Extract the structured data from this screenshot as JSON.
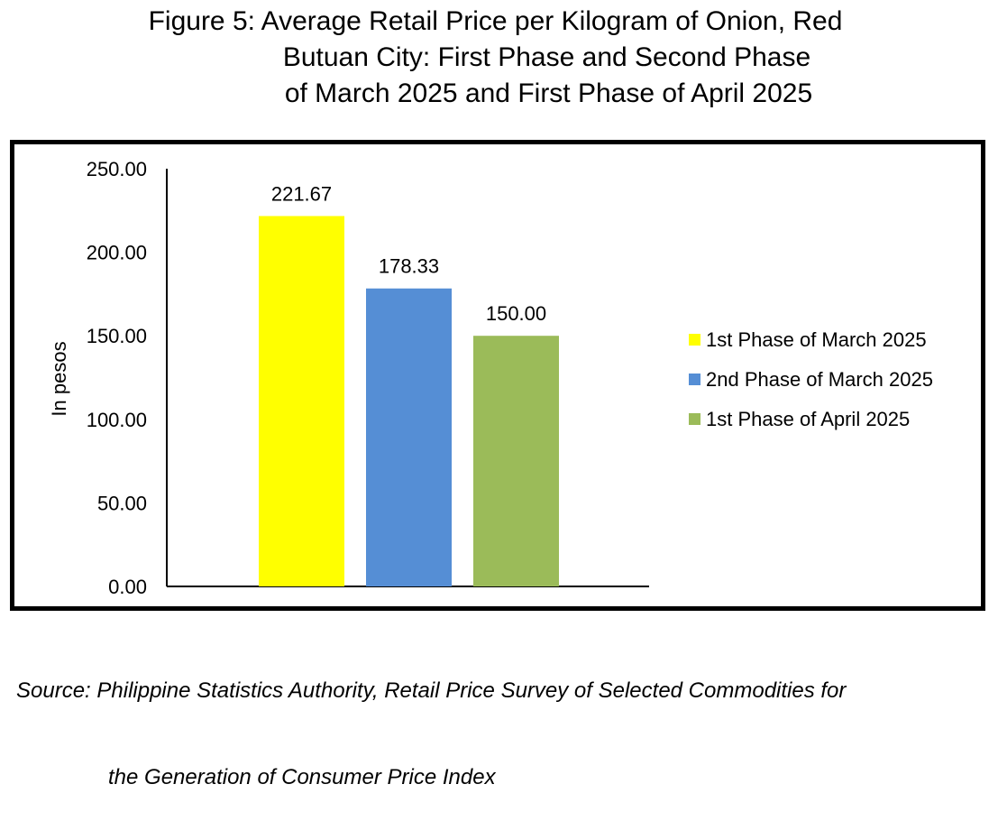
{
  "title_lines": [
    "Figure 5: Average Retail Price per Kilogram of Onion, Red",
    "Butuan City: First Phase and Second Phase",
    "of March 2025 and First Phase of April 2025"
  ],
  "source": {
    "line1": "Source: Philippine Statistics Authority, Retail Price Survey of Selected Commodities for",
    "line2": "the Generation of Consumer Price Index"
  },
  "chart_data": {
    "type": "bar",
    "ylabel": "In pesos",
    "ylim": [
      0,
      250
    ],
    "yticks": [
      "0.00",
      "50.00",
      "100.00",
      "150.00",
      "200.00",
      "250.00"
    ],
    "legend_position": "right",
    "series": [
      {
        "name": "1st Phase of March 2025",
        "value": 221.67,
        "label": "221.67",
        "color": "#FFFF00"
      },
      {
        "name": "2nd Phase of March 2025",
        "value": 178.33,
        "label": "178.33",
        "color": "#558ED5"
      },
      {
        "name": "1st Phase of April 2025",
        "value": 150.0,
        "label": "150.00",
        "color": "#9BBB59"
      }
    ]
  }
}
